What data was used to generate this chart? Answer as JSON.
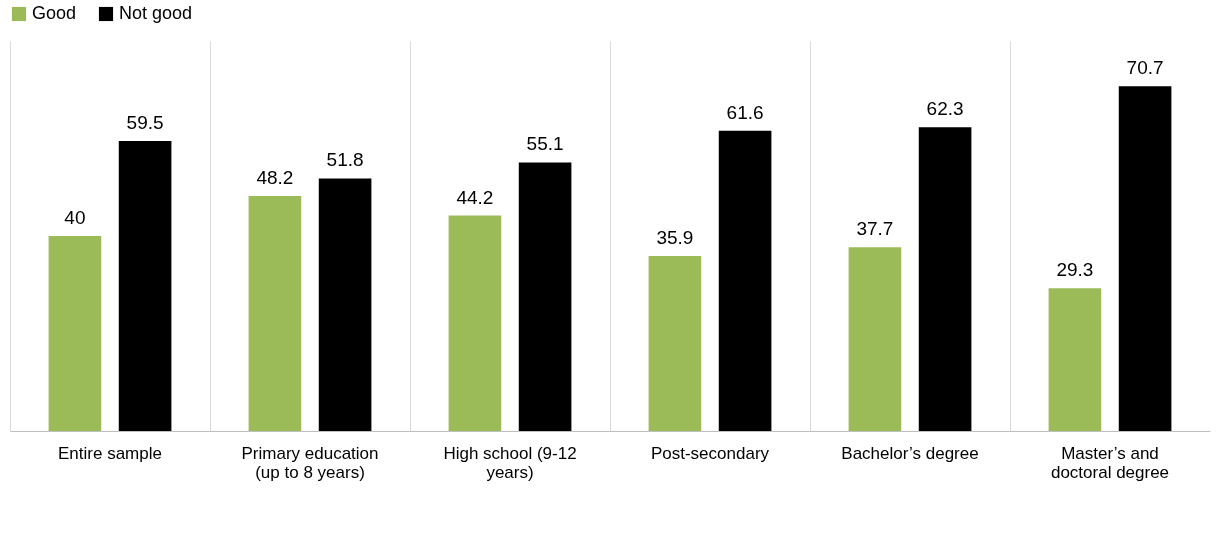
{
  "chart_data": {
    "type": "bar",
    "categories": [
      "Entire sample",
      "Primary education (up to 8 years)",
      "High school (9-12 years)",
      "Post-secondary",
      "Bachelor’s degree",
      "Master’s and doctoral degree"
    ],
    "series": [
      {
        "name": "Good",
        "color": "#9bbb59",
        "values": [
          40,
          48.2,
          44.2,
          35.9,
          37.7,
          29.3
        ]
      },
      {
        "name": "Not good",
        "color": "#000000",
        "values": [
          59.5,
          51.8,
          55.1,
          61.6,
          62.3,
          70.7
        ]
      }
    ],
    "data_labels": true,
    "grid": "x",
    "legend": "top"
  }
}
